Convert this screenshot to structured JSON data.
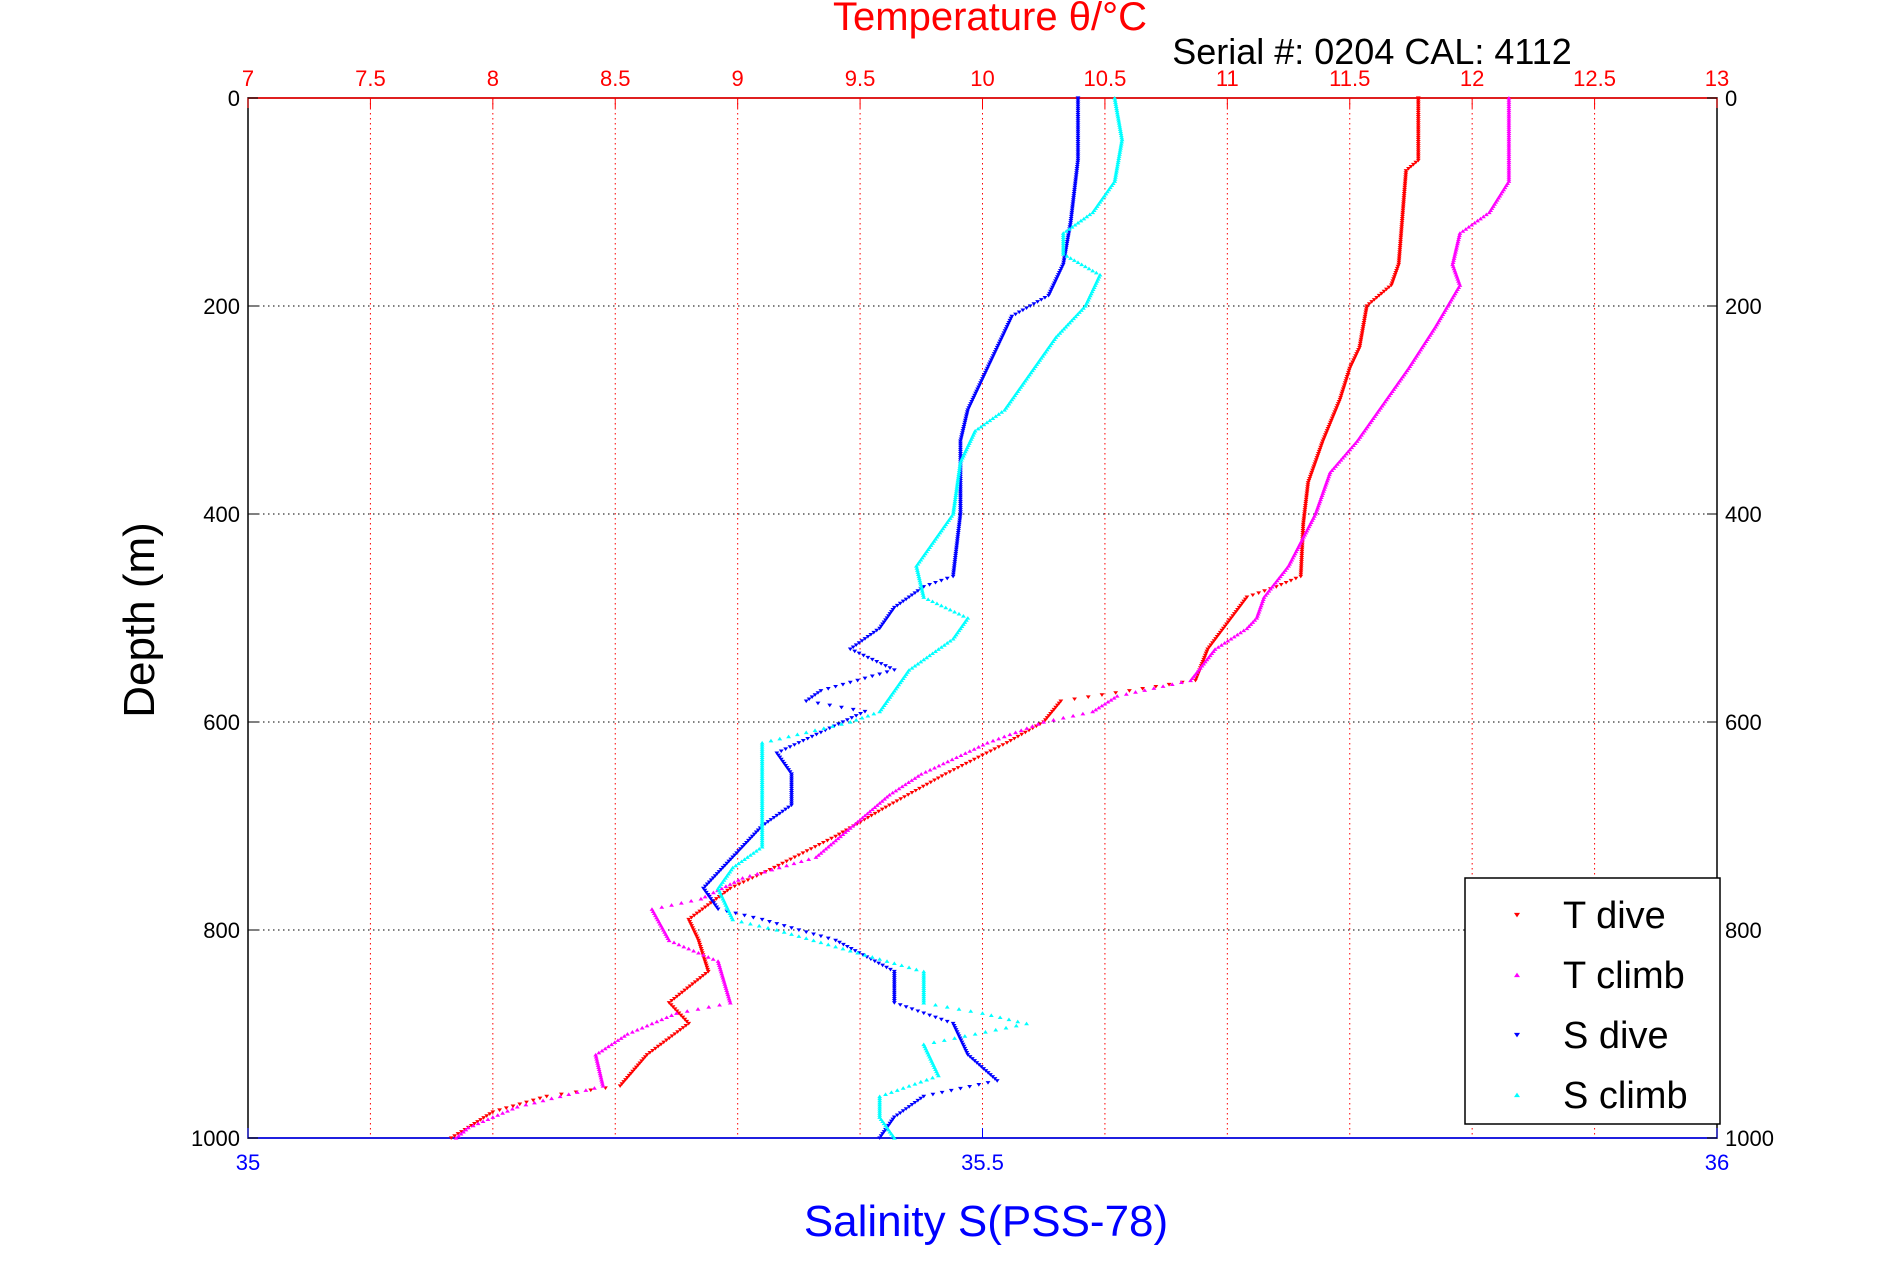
{
  "chart_data": {
    "type": "scatter",
    "title": "Temperature θ/°C",
    "subtitle": "Serial #: 0204  CAL: 4112",
    "xlabel": "Salinity S(PSS-78)",
    "ylabel": "Depth (m)",
    "x_top": {
      "label": "Temperature θ/°C",
      "lim": [
        7,
        13
      ],
      "ticks": [
        "7",
        "7.5",
        "8",
        "8.5",
        "9",
        "9.5",
        "10",
        "10.5",
        "11",
        "11.5",
        "12",
        "12.5",
        "13"
      ]
    },
    "x_bottom": {
      "label": "Salinity S(PSS-78)",
      "lim": [
        35,
        36
      ],
      "ticks": [
        "35",
        "35.5",
        "36"
      ]
    },
    "y": {
      "lim": [
        0,
        1000
      ],
      "reversed": true,
      "ticks": [
        "0",
        "200",
        "400",
        "600",
        "800",
        "1000"
      ]
    },
    "grid": true,
    "legend_position": "bottom-right",
    "series": [
      {
        "name": "T dive",
        "axis": "temperature",
        "color": "#ff0000",
        "marker": "triangle-down",
        "points": [
          [
            11.78,
            0
          ],
          [
            11.78,
            60
          ],
          [
            11.73,
            70
          ],
          [
            11.72,
            100
          ],
          [
            11.7,
            160
          ],
          [
            11.67,
            180
          ],
          [
            11.57,
            200
          ],
          [
            11.54,
            240
          ],
          [
            11.5,
            260
          ],
          [
            11.46,
            290
          ],
          [
            11.39,
            330
          ],
          [
            11.33,
            370
          ],
          [
            11.31,
            410
          ],
          [
            11.3,
            460
          ],
          [
            11.2,
            470
          ],
          [
            11.08,
            480
          ],
          [
            10.92,
            530
          ],
          [
            10.87,
            560
          ],
          [
            10.6,
            570
          ],
          [
            10.32,
            580
          ],
          [
            10.25,
            600
          ],
          [
            10.1,
            620
          ],
          [
            9.85,
            650
          ],
          [
            9.62,
            680
          ],
          [
            9.4,
            710
          ],
          [
            9.15,
            740
          ],
          [
            8.97,
            760
          ],
          [
            8.8,
            790
          ],
          [
            8.84,
            810
          ],
          [
            8.88,
            840
          ],
          [
            8.72,
            870
          ],
          [
            8.8,
            890
          ],
          [
            8.63,
            920
          ],
          [
            8.52,
            950
          ],
          [
            8.22,
            960
          ],
          [
            8.0,
            975
          ],
          [
            7.9,
            990
          ],
          [
            7.83,
            1000
          ]
        ]
      },
      {
        "name": "T climb",
        "axis": "temperature",
        "color": "#ff00ff",
        "marker": "triangle-up",
        "points": [
          [
            12.15,
            0
          ],
          [
            12.15,
            80
          ],
          [
            12.07,
            110
          ],
          [
            11.95,
            130
          ],
          [
            11.92,
            160
          ],
          [
            11.95,
            180
          ],
          [
            11.85,
            220
          ],
          [
            11.74,
            260
          ],
          [
            11.62,
            300
          ],
          [
            11.53,
            330
          ],
          [
            11.42,
            360
          ],
          [
            11.36,
            400
          ],
          [
            11.25,
            450
          ],
          [
            11.15,
            480
          ],
          [
            11.12,
            500
          ],
          [
            11.08,
            510
          ],
          [
            10.95,
            530
          ],
          [
            10.85,
            560
          ],
          [
            10.55,
            575
          ],
          [
            10.45,
            590
          ],
          [
            10.25,
            600
          ],
          [
            10.02,
            620
          ],
          [
            9.75,
            650
          ],
          [
            9.62,
            670
          ],
          [
            9.42,
            710
          ],
          [
            9.32,
            730
          ],
          [
            9.02,
            750
          ],
          [
            8.85,
            770
          ],
          [
            8.65,
            780
          ],
          [
            8.72,
            810
          ],
          [
            8.92,
            830
          ],
          [
            8.97,
            870
          ],
          [
            8.75,
            880
          ],
          [
            8.55,
            900
          ],
          [
            8.42,
            920
          ],
          [
            8.45,
            950
          ],
          [
            8.1,
            970
          ],
          [
            7.9,
            990
          ],
          [
            7.85,
            1000
          ]
        ]
      },
      {
        "name": "S dive",
        "axis": "salinity",
        "color": "#0000ff",
        "marker": "triangle-down",
        "points": [
          [
            35.565,
            0
          ],
          [
            35.565,
            60
          ],
          [
            35.56,
            120
          ],
          [
            35.555,
            160
          ],
          [
            35.545,
            190
          ],
          [
            35.52,
            210
          ],
          [
            35.51,
            240
          ],
          [
            35.5,
            270
          ],
          [
            35.49,
            300
          ],
          [
            35.485,
            330
          ],
          [
            35.485,
            400
          ],
          [
            35.48,
            460
          ],
          [
            35.46,
            470
          ],
          [
            35.44,
            490
          ],
          [
            35.43,
            510
          ],
          [
            35.41,
            530
          ],
          [
            35.44,
            550
          ],
          [
            35.39,
            570
          ],
          [
            35.38,
            580
          ],
          [
            35.42,
            590
          ],
          [
            35.39,
            610
          ],
          [
            35.36,
            630
          ],
          [
            35.37,
            650
          ],
          [
            35.37,
            680
          ],
          [
            35.35,
            700
          ],
          [
            35.33,
            730
          ],
          [
            35.31,
            760
          ],
          [
            35.32,
            780
          ],
          [
            35.35,
            790
          ],
          [
            35.4,
            810
          ],
          [
            35.44,
            840
          ],
          [
            35.44,
            870
          ],
          [
            35.48,
            890
          ],
          [
            35.49,
            920
          ],
          [
            35.51,
            945
          ],
          [
            35.46,
            960
          ],
          [
            35.44,
            980
          ],
          [
            35.43,
            1000
          ]
        ]
      },
      {
        "name": "S climb",
        "axis": "salinity",
        "color": "#00ffff",
        "marker": "triangle-up",
        "points": [
          [
            35.59,
            0
          ],
          [
            35.595,
            40
          ],
          [
            35.59,
            80
          ],
          [
            35.575,
            110
          ],
          [
            35.555,
            130
          ],
          [
            35.555,
            150
          ],
          [
            35.58,
            170
          ],
          [
            35.57,
            200
          ],
          [
            35.55,
            230
          ],
          [
            35.535,
            260
          ],
          [
            35.515,
            300
          ],
          [
            35.495,
            320
          ],
          [
            35.485,
            350
          ],
          [
            35.48,
            400
          ],
          [
            35.47,
            420
          ],
          [
            35.455,
            450
          ],
          [
            35.46,
            480
          ],
          [
            35.49,
            500
          ],
          [
            35.48,
            520
          ],
          [
            35.45,
            550
          ],
          [
            35.44,
            570
          ],
          [
            35.43,
            590
          ],
          [
            35.41,
            600
          ],
          [
            35.35,
            620
          ],
          [
            35.35,
            640
          ],
          [
            35.35,
            680
          ],
          [
            35.35,
            720
          ],
          [
            35.33,
            740
          ],
          [
            35.32,
            760
          ],
          [
            35.33,
            790
          ],
          [
            35.36,
            800
          ],
          [
            35.41,
            820
          ],
          [
            35.46,
            840
          ],
          [
            35.46,
            870
          ],
          [
            35.5,
            880
          ],
          [
            35.53,
            890
          ],
          [
            35.46,
            910
          ],
          [
            35.47,
            940
          ],
          [
            35.43,
            960
          ],
          [
            35.43,
            980
          ],
          [
            35.44,
            1000
          ]
        ]
      }
    ]
  },
  "legend": [
    {
      "label": "T dive",
      "color": "#ff0000",
      "marker": "triangle-down"
    },
    {
      "label": "T climb",
      "color": "#ff00ff",
      "marker": "triangle-up"
    },
    {
      "label": "S dive",
      "color": "#0000ff",
      "marker": "triangle-down"
    },
    {
      "label": "S climb",
      "color": "#00ffff",
      "marker": "triangle-up"
    }
  ]
}
